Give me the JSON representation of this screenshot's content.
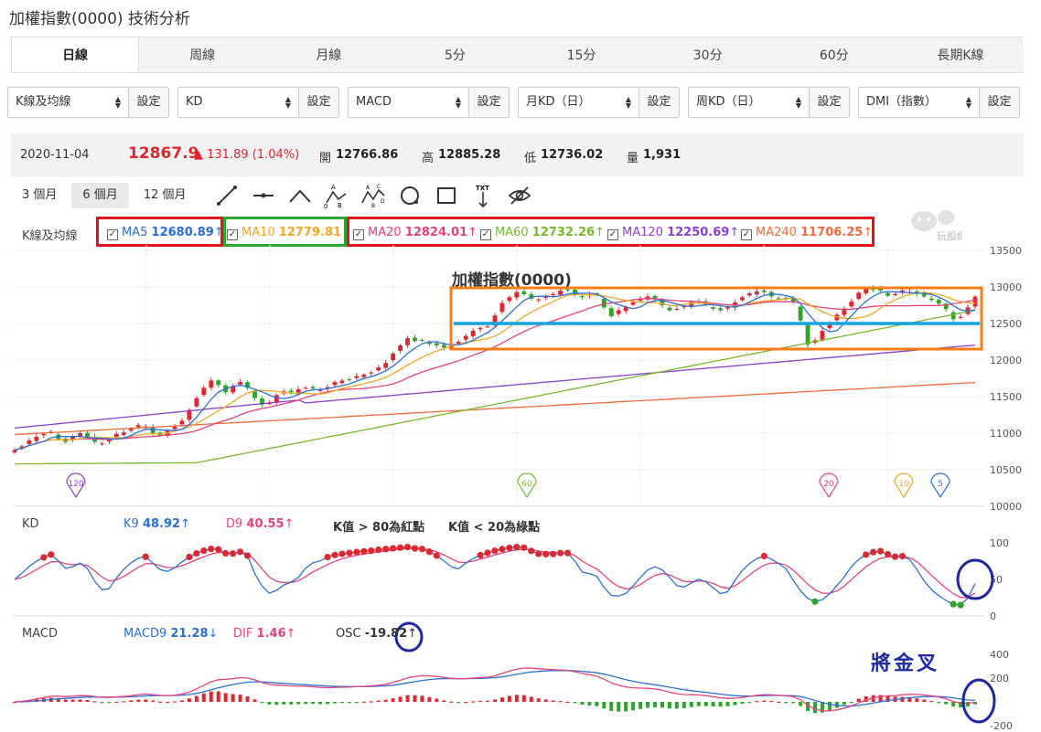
{
  "page": {
    "title": "加權指數(0000) 技術分析"
  },
  "tabs": [
    {
      "label": "日線",
      "active": true
    },
    {
      "label": "周線"
    },
    {
      "label": "月線"
    },
    {
      "label": "5分"
    },
    {
      "label": "15分"
    },
    {
      "label": "30分"
    },
    {
      "label": "60分"
    },
    {
      "label": "長期K線"
    }
  ],
  "selectors": [
    {
      "value": "K線及均線",
      "button": "設定"
    },
    {
      "value": "KD",
      "button": "設定"
    },
    {
      "value": "MACD",
      "button": "設定"
    },
    {
      "value": "月KD（日）",
      "button": "設定"
    },
    {
      "value": "周KD（日）",
      "button": "設定"
    },
    {
      "value": "DMI（指數）",
      "button": "設定"
    }
  ],
  "quote": {
    "date": "2020-11-04",
    "price": "12867.9",
    "change": "▲ 131.89 (1.04%)",
    "open_label": "開",
    "open": "12766.86",
    "high_label": "高",
    "high": "12885.28",
    "low_label": "低",
    "low": "12736.02",
    "volume_label": "量",
    "volume": "1,931"
  },
  "ranges": [
    {
      "label": "3 個月"
    },
    {
      "label": "6 個月",
      "active": true
    },
    {
      "label": "12 個月"
    }
  ],
  "tools": [
    "line-tool-icon",
    "horizontal-line-tool-icon",
    "angle-tool-icon",
    "abc-pattern-tool-icon",
    "abcd-pattern-tool-icon",
    "circle-tool-icon",
    "rectangle-tool-icon",
    "text-tool-icon",
    "hide-tool-icon"
  ],
  "tool_text": {
    "txt": "TXT",
    "a": "A",
    "b": "B",
    "c": "C",
    "d": "D",
    "o": "0"
  },
  "ma_legend": {
    "label": "K線及均線",
    "items": [
      {
        "name": "MA5",
        "value": "12680.89",
        "arrow": "↑",
        "color": "#2a6fd8"
      },
      {
        "name": "MA10",
        "value": "12779.81",
        "arrow": "↓",
        "color": "#f5a623"
      },
      {
        "name": "MA20",
        "value": "12824.01",
        "arrow": "↑",
        "color": "#e8417a"
      },
      {
        "name": "MA60",
        "value": "12732.26",
        "arrow": "↑",
        "color": "#77b82a"
      },
      {
        "name": "MA120",
        "value": "12250.69",
        "arrow": "↑",
        "color": "#8a3fd1"
      },
      {
        "name": "MA240",
        "value": "11706.25",
        "arrow": "↑",
        "color": "#f06a3a"
      }
    ]
  },
  "watermark": "玩股網",
  "kd_header": {
    "label": "KD",
    "k_name": "K9",
    "k_value": "48.92",
    "k_arrow": "↑",
    "d_name": "D9",
    "d_value": "40.55",
    "d_arrow": "↑",
    "note1": "K值 > 80為紅點",
    "note2": "K值 < 20為綠點"
  },
  "macd_header": {
    "label": "MACD",
    "macd_name": "MACD9",
    "macd_value": "21.28",
    "macd_arrow": "↓",
    "dif_name": "DIF",
    "dif_value": "1.46",
    "dif_arrow": "↑",
    "osc_name": "OSC",
    "osc_value": "-19.82",
    "osc_arrow": "↑"
  },
  "annotation": "將金叉",
  "colors": {
    "up": "#e0262e",
    "down": "#2ea52a",
    "box_red": "#e3131b",
    "box_green": "#28a832",
    "box_orange": "#f57c16",
    "support_line": "#14a3e0",
    "circle": "#1c2aa0"
  },
  "chart_data": [
    {
      "type": "candlestick",
      "title": "加權指數(0000)",
      "ylim": [
        10000,
        13500
      ],
      "yticks": [
        "13500",
        "13000",
        "12500",
        "12000",
        "11500",
        "11000",
        "10500",
        "10000"
      ],
      "close": [
        10770,
        10820,
        10900,
        10950,
        10990,
        11020,
        10920,
        10880,
        10960,
        11000,
        10950,
        10880,
        10860,
        10920,
        10990,
        11010,
        11060,
        11110,
        11090,
        11000,
        10970,
        11030,
        11090,
        11170,
        11320,
        11480,
        11620,
        11720,
        11660,
        11560,
        11640,
        11700,
        11620,
        11480,
        11390,
        11410,
        11520,
        11570,
        11560,
        11600,
        11620,
        11610,
        11590,
        11630,
        11700,
        11720,
        11730,
        11780,
        11800,
        11830,
        11900,
        11960,
        12090,
        12200,
        12300,
        12260,
        12270,
        12220,
        12200,
        12170,
        12200,
        12250,
        12330,
        12400,
        12440,
        12460,
        12610,
        12780,
        12860,
        12930,
        12900,
        12840,
        12830,
        12870,
        12900,
        12950,
        12960,
        12900,
        12860,
        12900,
        12890,
        12720,
        12600,
        12680,
        12730,
        12790,
        12840,
        12870,
        12830,
        12750,
        12680,
        12700,
        12740,
        12790,
        12800,
        12750,
        12700,
        12680,
        12720,
        12790,
        12860,
        12910,
        12940,
        12930,
        12870,
        12840,
        12830,
        12800,
        12540,
        12210,
        12270,
        12400,
        12510,
        12620,
        12700,
        12800,
        12920,
        12980,
        12960,
        12950,
        12880,
        12900,
        12950,
        12930,
        12910,
        12870,
        12820,
        12770,
        12700,
        12560,
        12590,
        12720,
        12868
      ],
      "ma_labels": [
        "120",
        "60",
        "20",
        "10",
        "5"
      ],
      "ma_label_colors": [
        "#8a3fd1",
        "#77b82a",
        "#e8417a",
        "#f5a623",
        "#2a6fd8"
      ]
    },
    {
      "type": "line",
      "title": "KD",
      "ylim": [
        0,
        100
      ],
      "yticks": [
        "100",
        "50",
        "0"
      ],
      "series": [
        {
          "name": "K9"
        },
        {
          "name": "D9"
        }
      ]
    },
    {
      "type": "bar",
      "title": "MACD",
      "ylim": [
        -200,
        400
      ],
      "yticks": [
        "400",
        "200",
        "-200"
      ],
      "series": [
        {
          "name": "MACD9"
        },
        {
          "name": "DIF"
        },
        {
          "name": "OSC"
        }
      ]
    }
  ]
}
